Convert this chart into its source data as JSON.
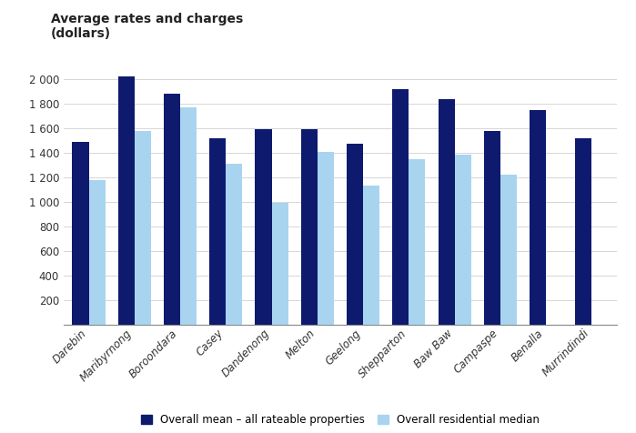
{
  "title": "Average rates and charges\n(dollars)",
  "categories": [
    "Darebin",
    "Maribyrnong",
    "Boroondara",
    "Casey",
    "Dandenong",
    "Melton",
    "Geelong",
    "Shepparton",
    "Baw Baw",
    "Campaspe",
    "Benalla",
    "Murrindindi"
  ],
  "overall_mean": [
    1490,
    2020,
    1880,
    1520,
    1590,
    1590,
    1470,
    1920,
    1835,
    1580,
    1750,
    1515
  ],
  "residential_median": [
    1175,
    1580,
    1770,
    1310,
    990,
    1405,
    1130,
    1350,
    1385,
    1225,
    0,
    0
  ],
  "mean_color": "#0d1a6e",
  "median_color": "#a8d4f0",
  "background_color": "#ffffff",
  "ylim": [
    0,
    2150
  ],
  "yticks": [
    0,
    200,
    400,
    600,
    800,
    1000,
    1200,
    1400,
    1600,
    1800,
    2000
  ],
  "ytick_labels": [
    "",
    "200",
    "400",
    "600",
    "800",
    "1 000",
    "1 200",
    "1 400",
    "1 600",
    "1 800",
    "2 000"
  ],
  "legend_mean": "Overall mean – all rateable properties",
  "legend_median": "Overall residential median",
  "bar_width": 0.36,
  "figsize": [
    6.99,
    4.76
  ],
  "dpi": 100
}
